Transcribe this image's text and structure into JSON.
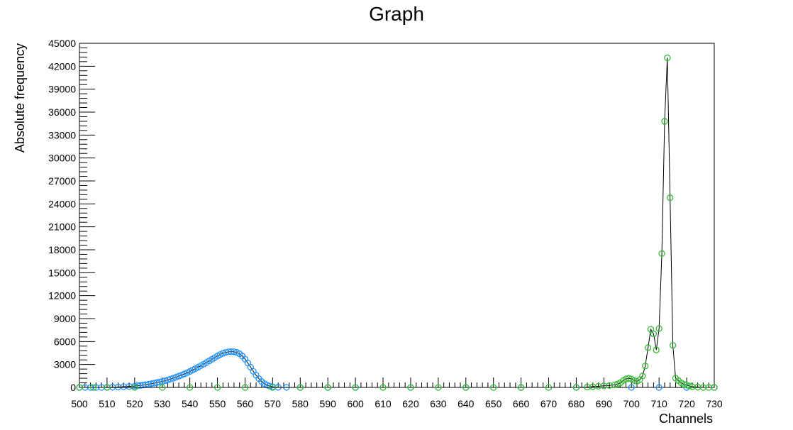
{
  "chart_data": {
    "type": "scatter",
    "title": "Graph",
    "xlabel": "Channels",
    "ylabel": "Absolute frequency",
    "xlim": [
      500,
      730
    ],
    "ylim": [
      0,
      45000
    ],
    "x_ticks": [
      "500",
      "510",
      "520",
      "530",
      "540",
      "550",
      "560",
      "570",
      "580",
      "590",
      "600",
      "610",
      "620",
      "630",
      "640",
      "650",
      "660",
      "670",
      "680",
      "690",
      "700",
      "710",
      "720",
      "730"
    ],
    "y_ticks": [
      "0",
      "3000",
      "6000",
      "9000",
      "12000",
      "15000",
      "18000",
      "21000",
      "24000",
      "27000",
      "30000",
      "33000",
      "36000",
      "39000",
      "42000",
      "45000"
    ],
    "grid": false,
    "legend": "none",
    "series": [
      {
        "color": "#1e90ff",
        "line_color": "#000000",
        "x": [
          500,
          502,
          504,
          506,
          508,
          510,
          512,
          514,
          516,
          518,
          520,
          521,
          522,
          523,
          524,
          525,
          526,
          527,
          528,
          529,
          530,
          531,
          532,
          533,
          534,
          535,
          536,
          537,
          538,
          539,
          540,
          541,
          542,
          543,
          544,
          545,
          546,
          547,
          548,
          549,
          550,
          551,
          552,
          553,
          554,
          555,
          556,
          557,
          558,
          559,
          560,
          561,
          562,
          563,
          564,
          565,
          566,
          567,
          568,
          569,
          570,
          572,
          575,
          580,
          590,
          600,
          620,
          640,
          660,
          680,
          700,
          710,
          720,
          730
        ],
        "y": [
          0,
          0,
          0,
          0,
          0,
          20,
          40,
          60,
          90,
          130,
          180,
          220,
          260,
          310,
          360,
          420,
          480,
          550,
          620,
          700,
          790,
          880,
          980,
          1090,
          1210,
          1340,
          1470,
          1610,
          1760,
          1920,
          2090,
          2270,
          2450,
          2640,
          2840,
          3040,
          3250,
          3460,
          3680,
          3900,
          4110,
          4300,
          4460,
          4580,
          4650,
          4680,
          4660,
          4580,
          4400,
          4100,
          3700,
          3200,
          2650,
          2100,
          1600,
          1150,
          780,
          500,
          300,
          160,
          80,
          30,
          10,
          0,
          0,
          0,
          0,
          0,
          0,
          0,
          0,
          0,
          0,
          0
        ]
      },
      {
        "color": "#33bb33",
        "line_color": "#000000",
        "x": [
          500,
          505,
          510,
          520,
          530,
          540,
          550,
          560,
          570,
          580,
          590,
          600,
          610,
          620,
          630,
          640,
          650,
          660,
          670,
          680,
          684,
          686,
          688,
          690,
          692,
          694,
          695,
          696,
          697,
          698,
          699,
          700,
          701,
          702,
          703,
          704,
          705,
          706,
          707,
          708,
          709,
          710,
          711,
          712,
          713,
          714,
          715,
          716,
          717,
          718,
          719,
          720,
          721,
          722,
          724,
          726,
          728,
          730
        ],
        "y": [
          0,
          0,
          0,
          0,
          0,
          0,
          0,
          0,
          0,
          0,
          0,
          0,
          0,
          0,
          0,
          0,
          0,
          0,
          0,
          0,
          50,
          100,
          150,
          200,
          250,
          350,
          450,
          600,
          900,
          1100,
          1200,
          1100,
          900,
          800,
          1000,
          1500,
          2800,
          5200,
          7600,
          7000,
          4900,
          7700,
          17500,
          34800,
          43100,
          24800,
          5500,
          1200,
          900,
          600,
          400,
          300,
          200,
          100,
          50,
          0,
          0,
          0
        ]
      }
    ]
  }
}
